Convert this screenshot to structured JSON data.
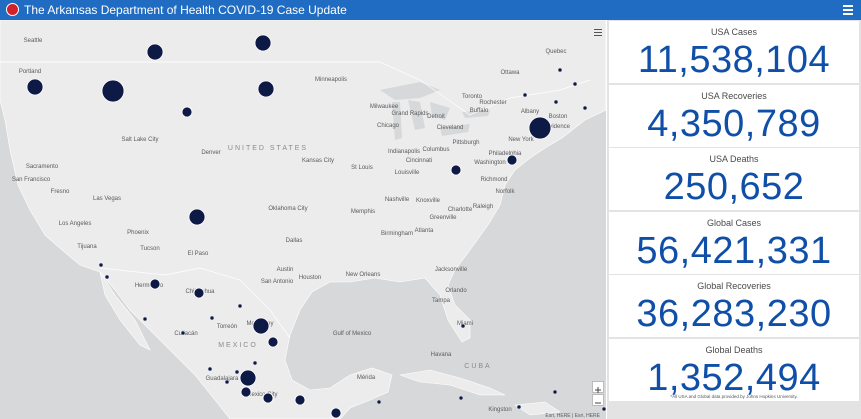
{
  "header": {
    "title": "The Arkansas Department of Health COVID-19 Case Update"
  },
  "map": {
    "labels": [
      "Seattle",
      "Portland",
      "Minneapolis",
      "Ottawa",
      "Quebec",
      "Toronto",
      "Rochester",
      "Buffalo",
      "Milwaukee",
      "Grand Rapids",
      "Detroit",
      "Chicago",
      "Cleveland",
      "Albany",
      "Boston",
      "Providence",
      "New York",
      "Pittsburgh",
      "Philadelphia",
      "Washington",
      "Indianapolis",
      "Columbus",
      "Cincinnati",
      "Louisville",
      "Kansas City",
      "St Louis",
      "Denver",
      "Salt Lake City",
      "UNITED STATES",
      "Sacramento",
      "San Francisco",
      "Fresno",
      "Las Vegas",
      "Richmond",
      "Norfolk",
      "Los Angeles",
      "Phoenix",
      "Tucson",
      "Tijuana",
      "El Paso",
      "Oklahoma City",
      "Memphis",
      "Nashville",
      "Knoxville",
      "Charlotte",
      "Raleigh",
      "Greenville",
      "Birmingham",
      "Atlanta",
      "Dallas",
      "Austin",
      "Houston",
      "San Antonio",
      "New Orleans",
      "Jacksonville",
      "Orlando",
      "Tampa",
      "Miami",
      "Hermosillo",
      "Chihuahua",
      "Monterrey",
      "Torreón",
      "Culiacán",
      "MEXICO",
      "Gulf of Mexico",
      "Havana",
      "CUBA",
      "Mérida",
      "Guadalajara",
      "Mexico City",
      "Kingston"
    ],
    "attribution": "Esri, HERE | Esri, HERE"
  },
  "stats": [
    {
      "label": "USA Cases",
      "value": "11,538,104"
    },
    {
      "label": "USA Recoveries",
      "value": "4,350,789"
    },
    {
      "label": "USA Deaths",
      "value": "250,652"
    },
    {
      "label": "Global Cases",
      "value": "56,421,331"
    },
    {
      "label": "Global Recoveries",
      "value": "36,283,230"
    },
    {
      "label": "Global Deaths",
      "value": "1,352,494"
    }
  ],
  "footnote": "*All USA and Global data provided by Johns Hopkins University."
}
